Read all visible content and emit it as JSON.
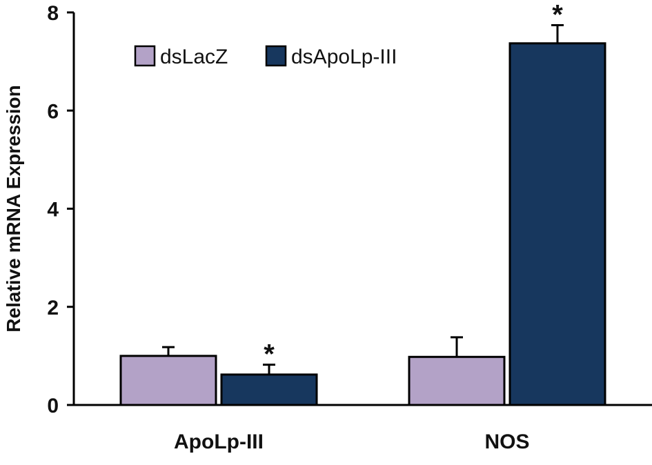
{
  "chart_data": {
    "type": "bar",
    "title": "",
    "xlabel": "",
    "ylabel": "Relative mRNA Expression",
    "ylim": [
      0,
      8
    ],
    "yticks": [
      0,
      2,
      4,
      6,
      8
    ],
    "categories": [
      "ApoLp-III",
      "NOS"
    ],
    "series": [
      {
        "name": "dsLacZ",
        "color": "#b3a2c7",
        "values": [
          1.0,
          0.98
        ],
        "errors": [
          0.18,
          0.4
        ],
        "significance": [
          "",
          ""
        ]
      },
      {
        "name": "dsApoLp-III",
        "color": "#17375e",
        "values": [
          0.62,
          7.37
        ],
        "errors": [
          0.2,
          0.37
        ],
        "significance": [
          "*",
          "*"
        ]
      }
    ],
    "legend": {
      "position": "top-left"
    },
    "grid": false,
    "error_bars": true
  }
}
